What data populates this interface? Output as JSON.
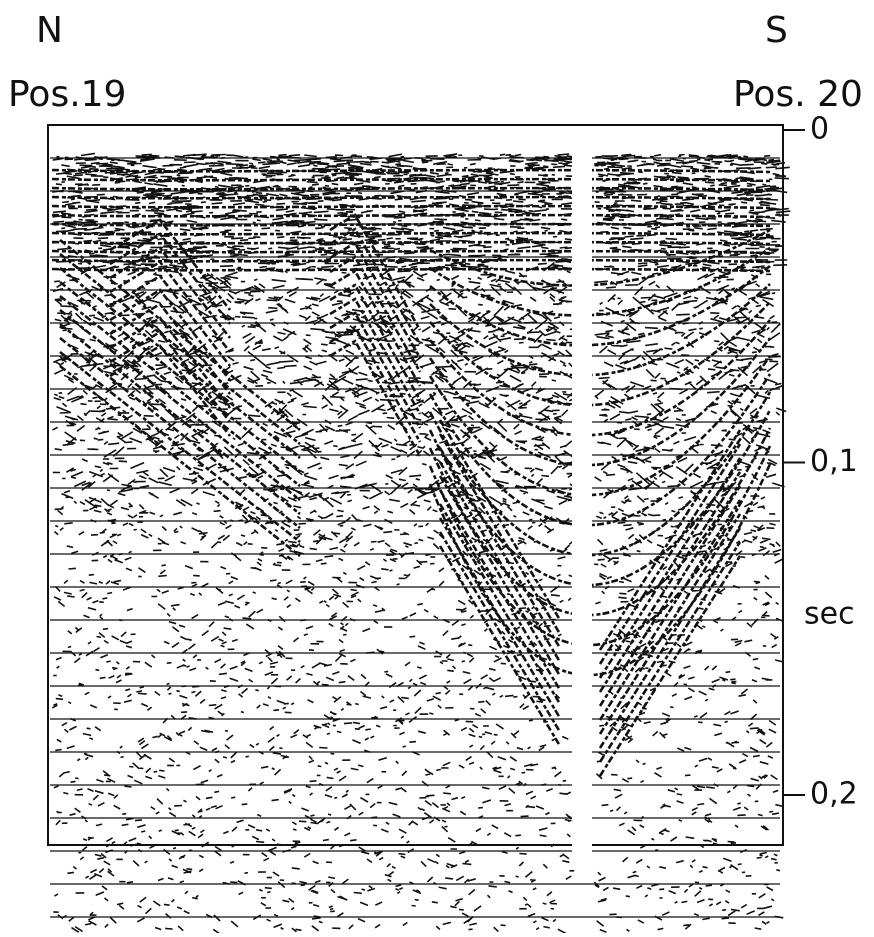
{
  "labels": {
    "left_direction": "N",
    "right_direction": "S",
    "left_position": "Pos.19",
    "right_position": "Pos. 20"
  },
  "axis": {
    "ticks": [
      "0",
      "0,1",
      "0,2"
    ],
    "unit": "sec"
  }
}
